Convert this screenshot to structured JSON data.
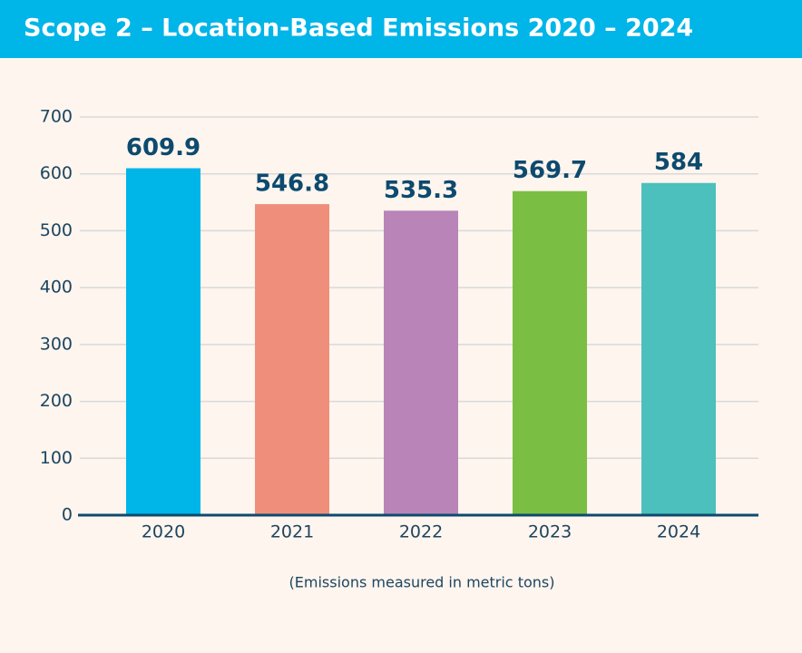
{
  "chart_data": {
    "type": "bar",
    "title": "Scope 2 – Location-Based Emissions 2020 – 2024",
    "categories": [
      "2020",
      "2021",
      "2022",
      "2023",
      "2024"
    ],
    "values": [
      609.9,
      546.8,
      535.3,
      569.7,
      584
    ],
    "colors": [
      "#00b5e8",
      "#ef8f7b",
      "#b985b9",
      "#7abf43",
      "#4bc0bc"
    ],
    "ylim": [
      0,
      700
    ],
    "yticks": [
      0,
      100,
      200,
      300,
      400,
      500,
      600,
      700
    ],
    "grid": true,
    "note": "(Emissions measured in metric tons)"
  }
}
